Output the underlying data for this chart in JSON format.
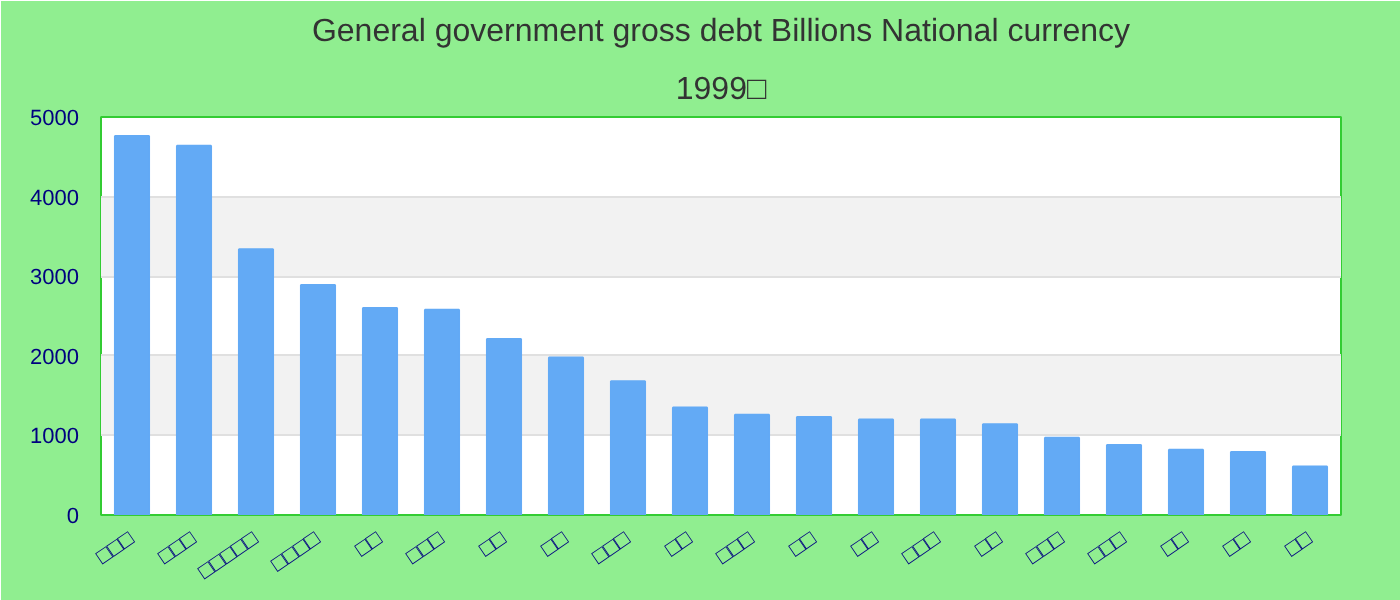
{
  "chart_data": {
    "type": "bar",
    "title": "General government gross debt Billions National currency",
    "subtitle": "1999□",
    "categories": [
      "□□□",
      "□□□",
      "□□□□□",
      "□□□□",
      "□□",
      "□□□",
      "□□",
      "□□",
      "□□□",
      "□□",
      "□□□",
      "□□",
      "□□",
      "□□□",
      "□□",
      "□□□",
      "□□□",
      "□□",
      "□□",
      "□□"
    ],
    "values": [
      4760,
      4640,
      3340,
      2890,
      2600,
      2580,
      2210,
      1980,
      1680,
      1350,
      1260,
      1230,
      1200,
      1200,
      1140,
      970,
      880,
      820,
      790,
      610
    ],
    "color": "#63aaf5",
    "ylim": [
      0,
      5000
    ],
    "yticks": [
      0,
      1000,
      2000,
      3000,
      4000,
      5000
    ],
    "grid": "y"
  }
}
